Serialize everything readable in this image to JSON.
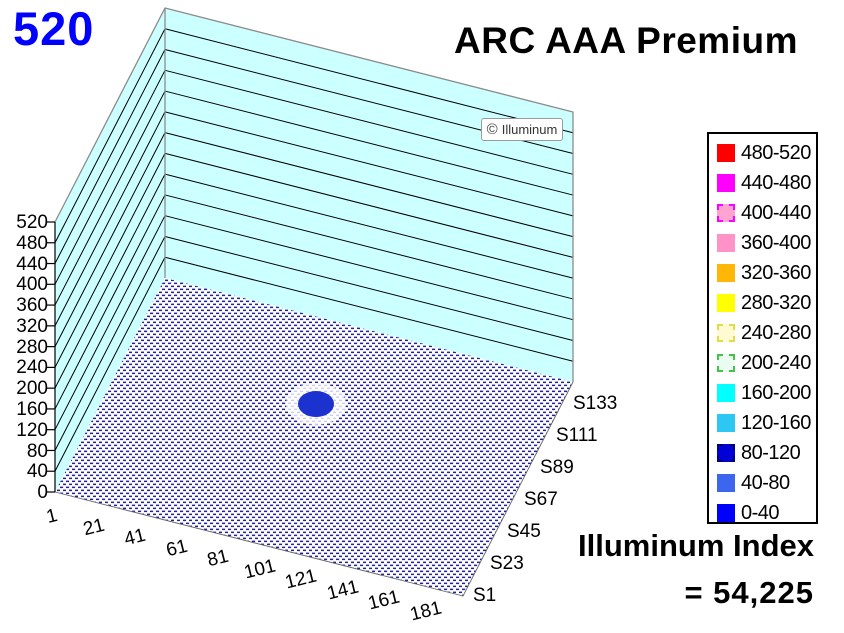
{
  "corner_value": "520",
  "title": "ARC AAA Premium",
  "watermark": {
    "symbol": "©",
    "text": "Illuminum"
  },
  "footer": {
    "line1": "Illuminum Index",
    "line2": "= 54,225"
  },
  "colors": {
    "corner_value": "#0000FF",
    "wall": "#CCFFFF",
    "grid": "#000000",
    "edge": "#8C8C8C",
    "floor_dot": "#21219E",
    "halo": "#FFFFFF",
    "peak": "#1B32CE"
  },
  "legend": {
    "items": [
      {
        "label": "480-520",
        "fill": "#FF0000"
      },
      {
        "label": "440-480",
        "fill": "#FF00FF"
      },
      {
        "label": "400-440",
        "fill": "#FFA3D1",
        "border": "2px dashed #FF00FF"
      },
      {
        "label": "360-400",
        "fill": "#FF93C9"
      },
      {
        "label": "320-360",
        "fill": "#FFB606"
      },
      {
        "label": "280-320",
        "fill": "#FFFF00"
      },
      {
        "label": "240-280",
        "fill": "#FFFAD2",
        "border": "2px dashed #E3DC4A"
      },
      {
        "label": "200-240",
        "fill": "#EAFBF1",
        "border": "2px dashed #44C24C"
      },
      {
        "label": "160-200",
        "fill": "#00FFFF"
      },
      {
        "label": "120-160",
        "fill": "#2EC6F2"
      },
      {
        "label": "80-120",
        "fill": "#0101D6",
        "border": "2px dashed #000080"
      },
      {
        "label": "40-80",
        "fill": "#3D66EE"
      },
      {
        "label": "0-40",
        "fill": "#0000FF"
      }
    ]
  },
  "axes": {
    "z_ticks": [
      "520",
      "480",
      "440",
      "400",
      "360",
      "320",
      "280",
      "240",
      "200",
      "160",
      "120",
      "80",
      "40",
      "0"
    ],
    "x_ticks": [
      "1",
      "21",
      "41",
      "61",
      "81",
      "101",
      "121",
      "141",
      "161",
      "181"
    ],
    "s_ticks": [
      "S133",
      "S111",
      "S89",
      "S67",
      "S45",
      "S23",
      "S1"
    ]
  },
  "chart_data": {
    "type": "surface",
    "projection": "3d",
    "title": "ARC AAA Premium",
    "x_axis": {
      "tick_labels": [
        "1",
        "21",
        "41",
        "61",
        "81",
        "101",
        "121",
        "141",
        "161",
        "181"
      ],
      "range": [
        1,
        191
      ]
    },
    "series_axis": {
      "tick_labels": [
        "S1",
        "S23",
        "S45",
        "S67",
        "S89",
        "S111",
        "S133"
      ],
      "count": 133
    },
    "z_axis": {
      "tick_labels": [
        "0",
        "40",
        "80",
        "120",
        "160",
        "200",
        "240",
        "280",
        "320",
        "360",
        "400",
        "440",
        "480",
        "520"
      ],
      "range": [
        0,
        520
      ],
      "step": 40
    },
    "legend_bands": [
      {
        "range": "480-520",
        "color": "#FF0000"
      },
      {
        "range": "440-480",
        "color": "#FF00FF"
      },
      {
        "range": "400-440",
        "color": "#FFA3D1"
      },
      {
        "range": "360-400",
        "color": "#FF93C9"
      },
      {
        "range": "320-360",
        "color": "#FFB606"
      },
      {
        "range": "280-320",
        "color": "#FFFF00"
      },
      {
        "range": "240-280",
        "color": "#FFFAD2"
      },
      {
        "range": "200-240",
        "color": "#EAFBF1"
      },
      {
        "range": "160-200",
        "color": "#00FFFF"
      },
      {
        "range": "120-160",
        "color": "#2EC6F2"
      },
      {
        "range": "80-120",
        "color": "#0101D6"
      },
      {
        "range": "40-80",
        "color": "#3D66EE"
      },
      {
        "range": "0-40",
        "color": "#0000FF"
      }
    ],
    "surface_summary": {
      "baseline": "surface lies flat in the 0-40 band over nearly the whole 191 x 133 grid (rendered as blue dotted floor)",
      "peak": {
        "category_approx": 95,
        "series_approx": "S63",
        "band": "80-120",
        "footprint": "small oval cluster near grid center"
      }
    },
    "annotations": [
      "520",
      "© Illuminum",
      "Illuminum Index = 54,225"
    ],
    "legend_position": "right",
    "grid": true
  }
}
